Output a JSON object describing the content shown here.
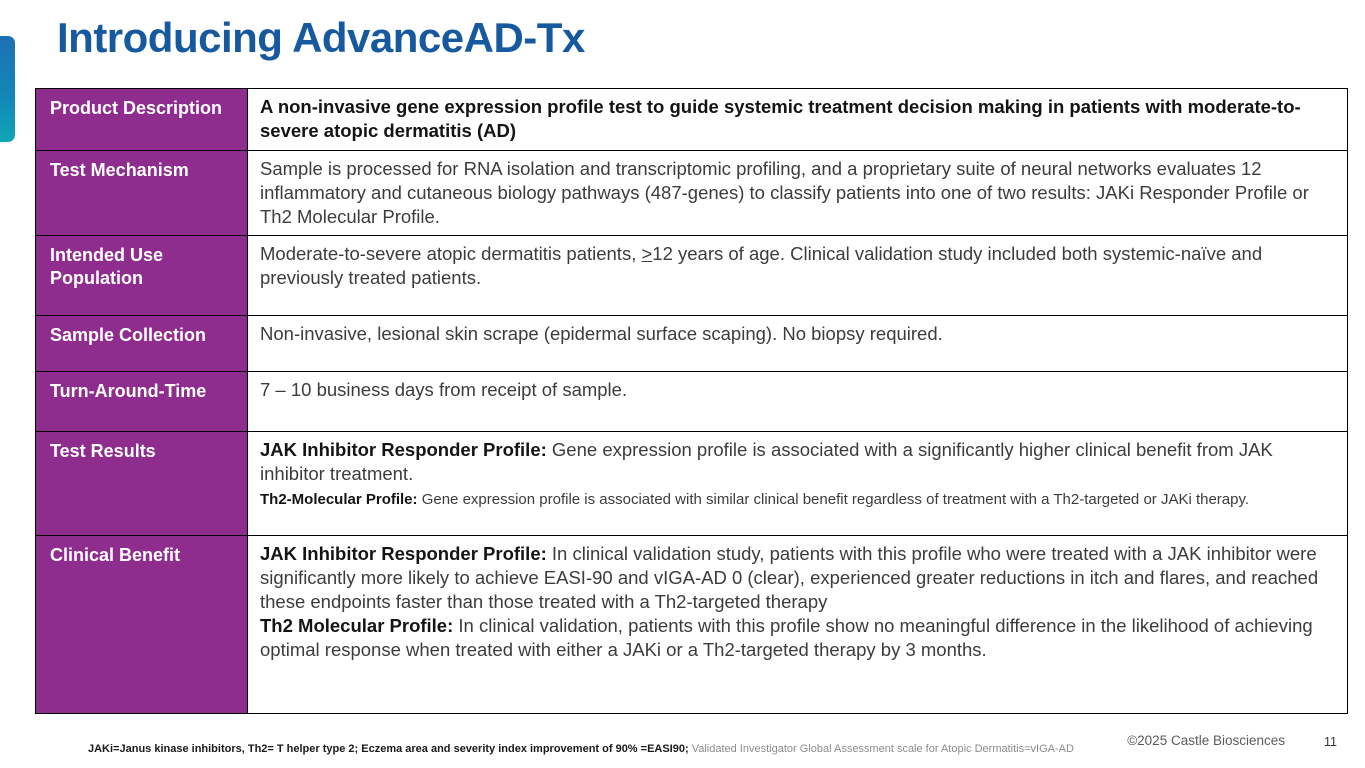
{
  "slide": {
    "title": "Introducing AdvanceAD-Tx",
    "page_number": "11",
    "copyright": "©2025 Castle Biosciences",
    "footnote": {
      "segments": [
        {
          "text": "JAKi=Janus kinase inhibitors, Th2= T helper type 2; Eczema area and severity index improvement of 90% =EASI90; ",
          "bold": true
        },
        {
          "text": "Validated Investigator Global Assessment scale for Atopic Dermatitis=vIGA-AD",
          "gray": true
        }
      ]
    }
  },
  "colors": {
    "title_blue": "#17599f",
    "header_purple": "#8e2d8e",
    "accent_gradient_top": "#1f6fb5",
    "accent_gradient_bottom": "#0fa5b5"
  },
  "table": {
    "rows": [
      {
        "label": "Product Description",
        "segments": [
          {
            "text": "A non-invasive gene expression profile test to guide systemic treatment decision making in patients with moderate-to-severe atopic dermatitis (AD)",
            "bold": true
          }
        ]
      },
      {
        "label": "Test Mechanism",
        "segments": [
          {
            "text": "Sample is processed for RNA isolation and transcriptomic profiling, and a proprietary suite of neural networks evaluates 12 inflammatory and cutaneous biology pathways (487-genes) to classify patients into one of two results: JAKi Responder Profile or Th2 Molecular Profile."
          }
        ]
      },
      {
        "label": "Intended Use Population",
        "segments": [
          {
            "text": "Moderate-to-severe atopic dermatitis patients, "
          },
          {
            "text": ">",
            "underline": true
          },
          {
            "text": "12 years of age. Clinical validation study included both systemic-naïve and previously treated patients."
          }
        ]
      },
      {
        "label": "Sample Collection",
        "segments": [
          {
            "text": "Non-invasive, lesional skin scrape (epidermal surface scaping). No biopsy required."
          }
        ]
      },
      {
        "label": "Turn-Around-Time",
        "segments": [
          {
            "text": "7 – 10 business days from receipt of sample."
          }
        ]
      },
      {
        "label": "Test Results",
        "segments": [
          {
            "text": "JAK Inhibitor Responder Profile: ",
            "bold": true
          },
          {
            "text": "Gene expression profile is associated with a significantly higher clinical benefit from JAK inhibitor treatment.\n"
          },
          {
            "text": "Th2-Molecular Profile: ",
            "bold": true,
            "small": true
          },
          {
            "text": "Gene expression profile is associated with similar clinical benefit regardless of treatment with a Th2-targeted or JAKi therapy.",
            "small": true
          }
        ]
      },
      {
        "label": "Clinical Benefit",
        "segments": [
          {
            "text": "JAK Inhibitor Responder Profile: ",
            "bold": true
          },
          {
            "text": "In clinical validation study, patients with this profile who were treated with a JAK inhibitor were significantly more likely to achieve EASI-90 and vIGA-AD 0 (clear), experienced greater reductions in itch and flares, and reached these endpoints faster than those treated with a Th2-targeted therapy\n"
          },
          {
            "text": "Th2 Molecular Profile: ",
            "bold": true
          },
          {
            "text": "In clinical validation, patients with this profile show no meaningful difference in the likelihood of achieving optimal response when treated with either a JAKi or a Th2-targeted therapy by 3 months."
          }
        ]
      }
    ]
  }
}
